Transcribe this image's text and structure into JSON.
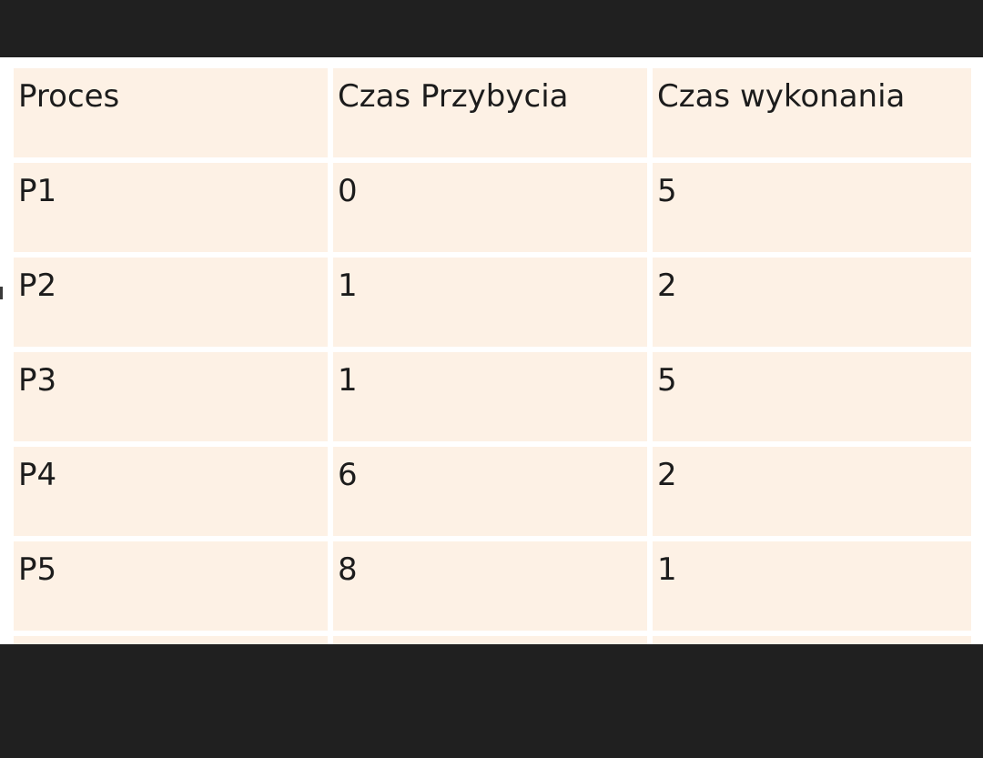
{
  "table": {
    "headers": [
      "Proces",
      "Czas Przybycia",
      "Czas wykonania"
    ],
    "rows": [
      [
        "P1",
        "0",
        "5"
      ],
      [
        "P2",
        "1",
        "2"
      ],
      [
        "P3",
        "1",
        "5"
      ],
      [
        "P4",
        "6",
        "2"
      ],
      [
        "P5",
        "8",
        "1"
      ],
      [
        "",
        "",
        ""
      ]
    ]
  },
  "colors": {
    "background": "#202020",
    "cell_fill": "#fdf1e5",
    "grid_line": "#ffffff",
    "text": "#1c1c1c"
  }
}
